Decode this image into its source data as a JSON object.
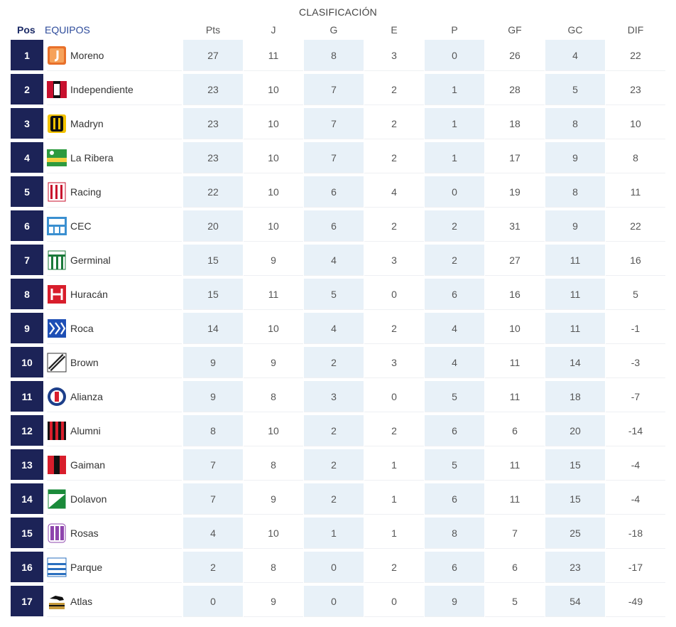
{
  "title": "CLASIFICACIÓN",
  "headers": {
    "pos": "Pos",
    "team": "EQUIPOS",
    "stats": [
      "Pts",
      "J",
      "G",
      "E",
      "P",
      "GF",
      "GC",
      "DIF"
    ]
  },
  "rows": [
    {
      "pos": "1",
      "team": "Moreno",
      "logo": "moreno-logo",
      "stats": [
        "27",
        "11",
        "8",
        "3",
        "0",
        "26",
        "4",
        "22"
      ]
    },
    {
      "pos": "2",
      "team": "Independiente",
      "logo": "independiente-logo",
      "stats": [
        "23",
        "10",
        "7",
        "2",
        "1",
        "28",
        "5",
        "23"
      ]
    },
    {
      "pos": "3",
      "team": "Madryn",
      "logo": "madryn-logo",
      "stats": [
        "23",
        "10",
        "7",
        "2",
        "1",
        "18",
        "8",
        "10"
      ]
    },
    {
      "pos": "4",
      "team": "La Ribera",
      "logo": "la-ribera-logo",
      "stats": [
        "23",
        "10",
        "7",
        "2",
        "1",
        "17",
        "9",
        "8"
      ]
    },
    {
      "pos": "5",
      "team": "Racing",
      "logo": "racing-logo",
      "stats": [
        "22",
        "10",
        "6",
        "4",
        "0",
        "19",
        "8",
        "11"
      ]
    },
    {
      "pos": "6",
      "team": "CEC",
      "logo": "cec-logo",
      "stats": [
        "20",
        "10",
        "6",
        "2",
        "2",
        "31",
        "9",
        "22"
      ]
    },
    {
      "pos": "7",
      "team": "Germinal",
      "logo": "germinal-logo",
      "stats": [
        "15",
        "9",
        "4",
        "3",
        "2",
        "27",
        "11",
        "16"
      ]
    },
    {
      "pos": "8",
      "team": "Huracán",
      "logo": "huracan-logo",
      "stats": [
        "15",
        "11",
        "5",
        "0",
        "6",
        "16",
        "11",
        "5"
      ]
    },
    {
      "pos": "9",
      "team": "Roca",
      "logo": "roca-logo",
      "stats": [
        "14",
        "10",
        "4",
        "2",
        "4",
        "10",
        "11",
        "-1"
      ]
    },
    {
      "pos": "10",
      "team": "Brown",
      "logo": "brown-logo",
      "stats": [
        "9",
        "9",
        "2",
        "3",
        "4",
        "11",
        "14",
        "-3"
      ]
    },
    {
      "pos": "11",
      "team": "Alianza",
      "logo": "alianza-logo",
      "stats": [
        "9",
        "8",
        "3",
        "0",
        "5",
        "11",
        "18",
        "-7"
      ]
    },
    {
      "pos": "12",
      "team": "Alumni",
      "logo": "alumni-logo",
      "stats": [
        "8",
        "10",
        "2",
        "2",
        "6",
        "6",
        "20",
        "-14"
      ]
    },
    {
      "pos": "13",
      "team": "Gaiman",
      "logo": "gaiman-logo",
      "stats": [
        "7",
        "8",
        "2",
        "1",
        "5",
        "11",
        "15",
        "-4"
      ]
    },
    {
      "pos": "14",
      "team": "Dolavon",
      "logo": "dolavon-logo",
      "stats": [
        "7",
        "9",
        "2",
        "1",
        "6",
        "11",
        "15",
        "-4"
      ]
    },
    {
      "pos": "15",
      "team": "Rosas",
      "logo": "rosas-logo",
      "stats": [
        "4",
        "10",
        "1",
        "1",
        "8",
        "7",
        "25",
        "-18"
      ]
    },
    {
      "pos": "16",
      "team": "Parque",
      "logo": "parque-logo",
      "stats": [
        "2",
        "8",
        "0",
        "2",
        "6",
        "6",
        "23",
        "-17"
      ]
    },
    {
      "pos": "17",
      "team": "Atlas",
      "logo": "atlas-logo",
      "stats": [
        "0",
        "9",
        "0",
        "0",
        "9",
        "5",
        "54",
        "-49"
      ]
    }
  ],
  "colors": {
    "pos_bg": "#1c2357",
    "shade": "#e8f1f8",
    "header_team": "#2c4a9a"
  }
}
